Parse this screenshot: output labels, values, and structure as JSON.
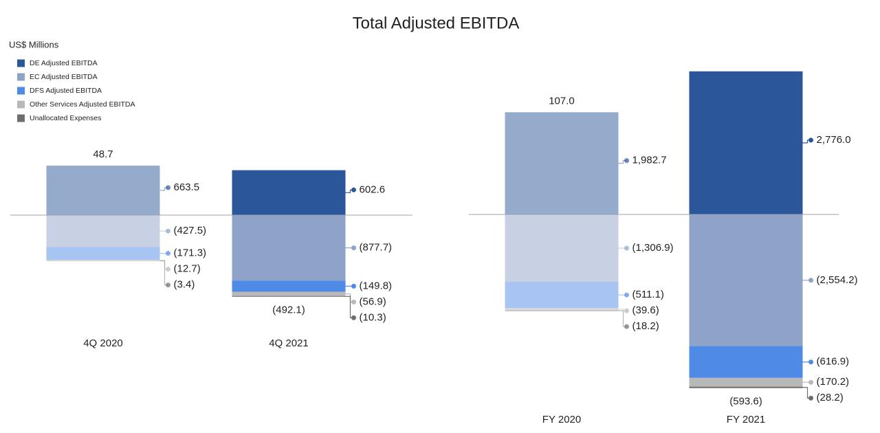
{
  "chart_data": [
    {
      "type": "bar",
      "stacked": true,
      "title": "Total Adjusted EBITDA",
      "unit_label": "US$ Millions",
      "categories": [
        "4Q 2020",
        "4Q 2021"
      ],
      "alpha": [
        0.5,
        1
      ],
      "ylim": [
        -2000,
        1000
      ],
      "totals": [
        48.7,
        -492.1
      ],
      "total_labels": [
        "48.7",
        "(492.1)"
      ],
      "series": [
        {
          "name": "DE Adjusted EBITDA",
          "color": "#2b579a",
          "values": [
            663.5,
            602.6
          ],
          "value_labels": [
            "663.5",
            "602.6"
          ]
        },
        {
          "name": "EC Adjusted EBITDA",
          "color": "#8fa3c8",
          "values": [
            -427.5,
            -877.7
          ],
          "value_labels": [
            "(427.5)",
            "(877.7)"
          ]
        },
        {
          "name": "DFS Adjusted EBITDA",
          "color": "#4f8ae6",
          "values": [
            -171.3,
            -149.8
          ],
          "value_labels": [
            "(171.3)",
            "(149.8)"
          ]
        },
        {
          "name": "Other Services Adjusted EBITDA",
          "color": "#b8b8b8",
          "values": [
            -12.7,
            -56.9
          ],
          "value_labels": [
            "(12.7)",
            "(56.9)"
          ]
        },
        {
          "name": "Unallocated Expenses",
          "color": "#6e6e6e",
          "values": [
            -3.4,
            -10.3
          ],
          "value_labels": [
            "(3.4)",
            "(10.3)"
          ]
        }
      ]
    },
    {
      "type": "bar",
      "stacked": true,
      "categories": [
        "FY 2020",
        "FY 2021"
      ],
      "alpha": [
        0.5,
        1
      ],
      "ylim": [
        -4000,
        3000
      ],
      "totals": [
        107.0,
        -593.6
      ],
      "total_labels": [
        "107.0",
        "(593.6)"
      ],
      "series": [
        {
          "color": "#2b579a",
          "values": [
            1982.7,
            2776.0
          ],
          "value_labels": [
            "1,982.7",
            "2,776.0"
          ]
        },
        {
          "color": "#8fa3c8",
          "values": [
            -1306.9,
            -2554.2
          ],
          "value_labels": [
            "(1,306.9)",
            "(2,554.2)"
          ]
        },
        {
          "color": "#4f8ae6",
          "values": [
            -511.1,
            -616.9
          ],
          "value_labels": [
            "(511.1)",
            "(616.9)"
          ]
        },
        {
          "color": "#b8b8b8",
          "values": [
            -39.6,
            -170.2
          ],
          "value_labels": [
            "(39.6)",
            "(170.2)"
          ]
        },
        {
          "color": "#6e6e6e",
          "values": [
            -18.2,
            -28.2
          ],
          "value_labels": [
            "(18.2)",
            "(28.2)"
          ]
        }
      ]
    }
  ]
}
